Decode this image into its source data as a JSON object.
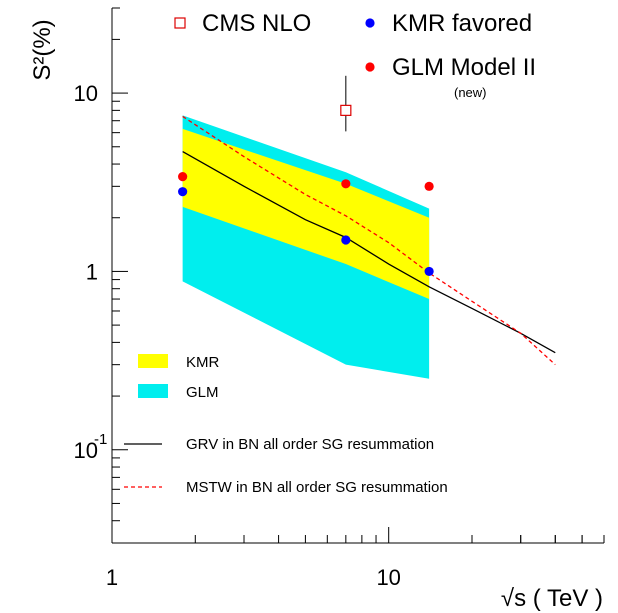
{
  "chart_data": {
    "type": "scatter",
    "title": "",
    "xlabel": "√s ( TeV )",
    "ylabel": "S²(%)",
    "x_scale": "log",
    "y_scale": "log",
    "xlim": [
      1,
      60
    ],
    "ylim": [
      0.03,
      30
    ],
    "grid": false,
    "x_ticks": [
      {
        "value": 1,
        "label": "1"
      },
      {
        "value": 10,
        "label": "10"
      }
    ],
    "y_ticks": [
      {
        "value": 0.1,
        "label": "10",
        "sup": "-1"
      },
      {
        "value": 1,
        "label": "1",
        "sup": ""
      },
      {
        "value": 10,
        "label": "10",
        "sup": ""
      }
    ],
    "bands": [
      {
        "name": "GLM",
        "color": "#00eeee",
        "x": [
          1.8,
          7,
          14
        ],
        "upper": [
          7.5,
          3.6,
          2.25
        ],
        "lower": [
          0.88,
          0.3,
          0.25
        ]
      },
      {
        "name": "KMR",
        "color": "#ffff00",
        "x": [
          1.8,
          7,
          14
        ],
        "upper": [
          6.3,
          3.1,
          2.0
        ],
        "lower": [
          2.3,
          1.1,
          0.7
        ]
      }
    ],
    "curves": [
      {
        "name": "GRV in BN  all order SG resummation",
        "color": "#000000",
        "style": "solid",
        "x": [
          1.8,
          3,
          5,
          7,
          10,
          14,
          20,
          30,
          40
        ],
        "y": [
          4.7,
          3.0,
          1.95,
          1.55,
          1.1,
          0.82,
          0.62,
          0.45,
          0.35
        ]
      },
      {
        "name": "MSTW in BN  all order SG resummation",
        "color": "#ff0000",
        "style": "dashed",
        "x": [
          1.8,
          3,
          5,
          7,
          10,
          14,
          20,
          30,
          40
        ],
        "y": [
          7.4,
          4.4,
          2.7,
          2.05,
          1.45,
          0.98,
          0.68,
          0.45,
          0.3
        ]
      }
    ],
    "series": [
      {
        "name": "CMS NLO",
        "marker": "open-square",
        "color": "#dd0000",
        "points": [
          {
            "x": 7,
            "y": 8.0,
            "yerr_low": 6.1,
            "yerr_high": 12.5
          }
        ]
      },
      {
        "name": "KMR favored",
        "marker": "dot",
        "color": "#0000ff",
        "points": [
          {
            "x": 1.8,
            "y": 2.8
          },
          {
            "x": 7,
            "y": 1.5
          },
          {
            "x": 14,
            "y": 1.0
          }
        ]
      },
      {
        "name": "GLM Model II",
        "marker": "dot",
        "color": "#ff0000",
        "points": [
          {
            "x": 1.8,
            "y": 3.4
          },
          {
            "x": 7,
            "y": 3.1
          },
          {
            "x": 14,
            "y": 3.0
          }
        ]
      }
    ],
    "legend_top": [
      {
        "label": "CMS NLO",
        "marker": "open-square",
        "color": "#dd0000",
        "note": ""
      },
      {
        "label": "KMR favored",
        "marker": "dot",
        "color": "#0000ff",
        "note": ""
      },
      {
        "label": "GLM Model II",
        "marker": "dot",
        "color": "#ff0000",
        "note": "(new)"
      }
    ],
    "legend_bands": [
      {
        "label": "KMR",
        "color": "#ffff00"
      },
      {
        "label": "GLM",
        "color": "#00eeee"
      }
    ],
    "legend_lines": [
      {
        "label": "GRV in BN  all order SG resummation",
        "color": "#000000",
        "style": "solid"
      },
      {
        "label": "MSTW in BN  all order SG resummation",
        "color": "#ff0000",
        "style": "dashed"
      }
    ]
  }
}
